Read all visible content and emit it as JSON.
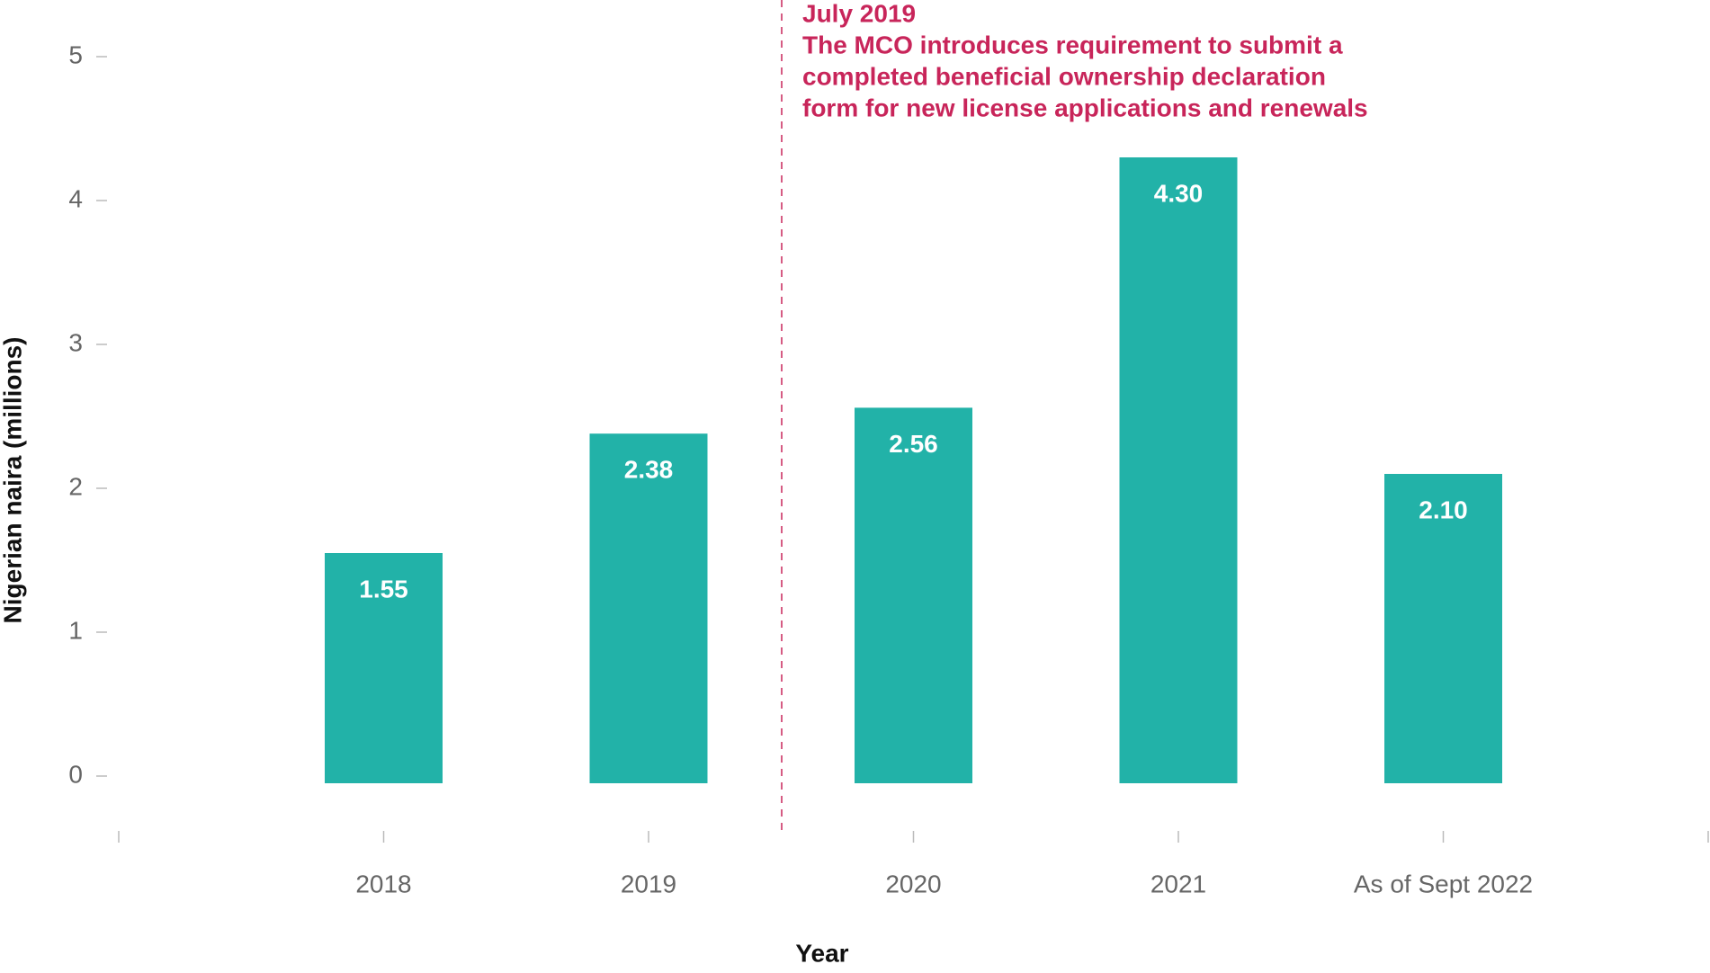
{
  "chart_data": {
    "type": "bar",
    "y_label": "Nigerian naira (millions)",
    "x_label": "Year",
    "categories": [
      "2018",
      "2019",
      "2020",
      "2021",
      "As of Sept 2022"
    ],
    "values": [
      1.55,
      2.38,
      2.56,
      4.3,
      2.1
    ],
    "value_labels": [
      "1.55",
      "2.38",
      "2.56",
      "4.30",
      "2.10"
    ],
    "color": "#22b2a8",
    "ylim": [
      0,
      5
    ],
    "yticks": [
      0,
      1,
      2,
      3,
      4,
      5
    ],
    "annotation": {
      "lines": [
        "July 2019",
        "The MCO introduces requirement to submit a",
        "completed beneficial ownership declaration",
        "form for new license applications and renewals"
      ],
      "color": "#c8255a"
    }
  }
}
